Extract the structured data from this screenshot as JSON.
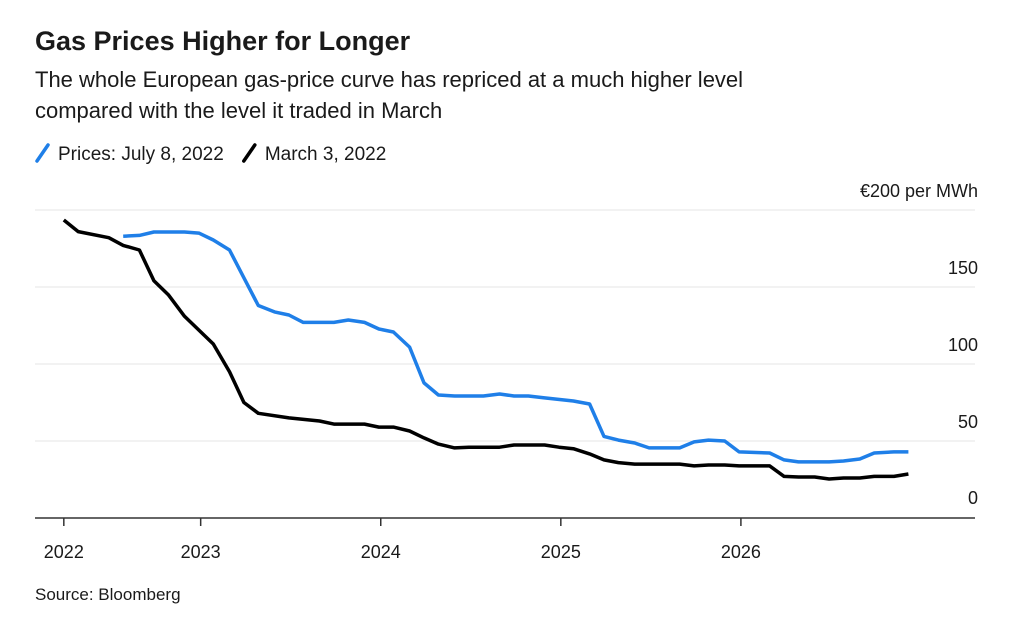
{
  "chart_data": {
    "type": "line",
    "title": "Gas Prices Higher for Longer",
    "subtitle": [
      "The whole European gas-price curve has repriced at a much higher level",
      "compared with the level it traded in March"
    ],
    "source": "Source: Bloomberg",
    "xlim": [
      2022.08,
      2027.3
    ],
    "xticks": [
      {
        "value": 2022.24,
        "label": "2022"
      },
      2023,
      2024,
      2025,
      2026
    ],
    "ylim": [
      0,
      200
    ],
    "yticks": [
      0,
      50,
      100,
      150,
      {
        "value": 200,
        "label": "€200 per MWh"
      }
    ],
    "grid": true,
    "legend": "top-left",
    "series": [
      {
        "name": "Prices: July 8, 2022",
        "color": "#1f7fe8",
        "x": [
          2022.57,
          2022.66,
          2022.74,
          2022.91,
          2022.99,
          2023.07,
          2023.16,
          2023.24,
          2023.32,
          2023.41,
          2023.49,
          2023.57,
          2023.74,
          2023.82,
          2023.91,
          2023.99,
          2024.07,
          2024.16,
          2024.24,
          2024.32,
          2024.41,
          2024.57,
          2024.66,
          2024.74,
          2024.82,
          2024.91,
          2025.07,
          2025.16,
          2025.24,
          2025.32,
          2025.41,
          2025.49,
          2025.66,
          2025.74,
          2025.82,
          2025.91,
          2025.99,
          2026.16,
          2026.24,
          2026.32,
          2026.49,
          2026.57,
          2026.66,
          2026.74,
          2026.85,
          2026.93
        ],
        "values": [
          183,
          183.5,
          185.7,
          185.7,
          185,
          180.5,
          174,
          156,
          138,
          133.8,
          131.8,
          127,
          127,
          128.6,
          127,
          122.7,
          120.8,
          111,
          87.7,
          79.9,
          79.2,
          79.2,
          80.5,
          79.2,
          79.2,
          78,
          76,
          74,
          53,
          50.6,
          48.7,
          45.5,
          45.5,
          49.4,
          50.6,
          50,
          42.9,
          42.2,
          37.7,
          36.4,
          36.4,
          37,
          38.3,
          42.2,
          42.9,
          42.9
        ]
      },
      {
        "name": "March 3, 2022",
        "color": "#000000",
        "x": [
          2022.24,
          2022.32,
          2022.49,
          2022.57,
          2022.66,
          2022.74,
          2022.82,
          2022.91,
          2023.07,
          2023.16,
          2023.24,
          2023.32,
          2023.49,
          2023.66,
          2023.74,
          2023.91,
          2023.99,
          2024.07,
          2024.16,
          2024.24,
          2024.32,
          2024.41,
          2024.49,
          2024.66,
          2024.74,
          2024.91,
          2024.99,
          2025.07,
          2025.16,
          2025.24,
          2025.32,
          2025.41,
          2025.66,
          2025.74,
          2025.82,
          2025.91,
          2025.99,
          2026.16,
          2026.24,
          2026.32,
          2026.41,
          2026.49,
          2026.57,
          2026.66,
          2026.74,
          2026.85,
          2026.93
        ],
        "values": [
          193.5,
          186,
          182,
          177,
          174,
          154,
          145,
          131,
          113,
          95,
          75,
          68,
          65,
          63,
          61,
          61,
          59,
          59,
          56.5,
          52,
          48,
          45.5,
          46,
          46,
          47.4,
          47.4,
          46,
          45,
          41.6,
          37.7,
          36,
          35,
          35,
          33.8,
          34.4,
          34.4,
          33.8,
          33.8,
          27,
          26.6,
          26.6,
          25.3,
          26,
          26,
          27,
          27,
          28.6
        ]
      }
    ]
  }
}
